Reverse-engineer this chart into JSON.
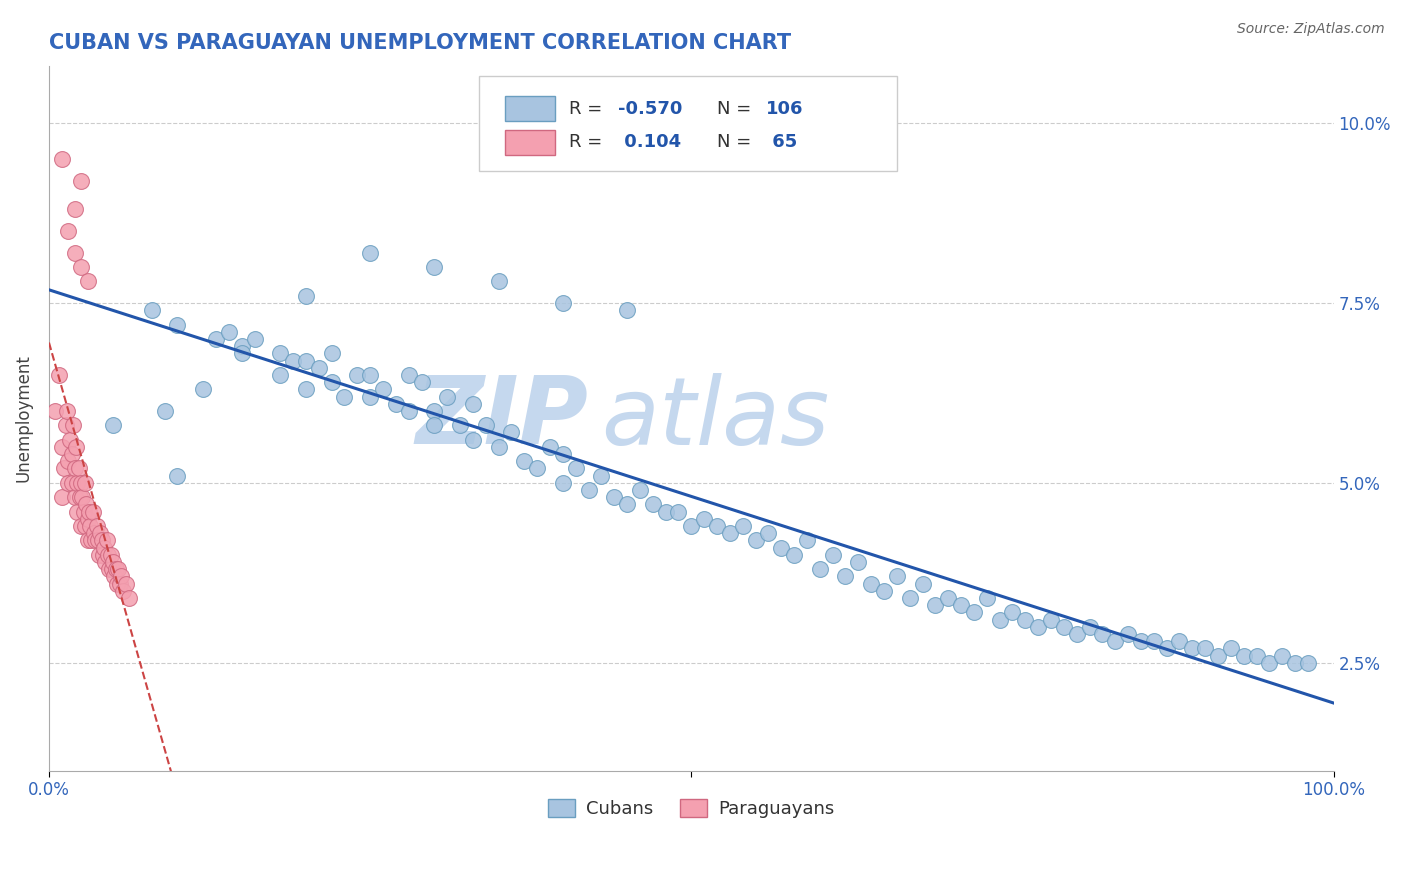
{
  "title": "CUBAN VS PARAGUAYAN UNEMPLOYMENT CORRELATION CHART",
  "source": "Source: ZipAtlas.com",
  "ylabel": "Unemployment",
  "yticks": [
    0.025,
    0.05,
    0.075,
    0.1
  ],
  "ytick_labels": [
    "2.5%",
    "5.0%",
    "7.5%",
    "10.0%"
  ],
  "xlim": [
    0.0,
    1.0
  ],
  "ylim": [
    0.01,
    0.108
  ],
  "cuban_R": -0.57,
  "cuban_N": 106,
  "paraguayan_R": 0.104,
  "paraguayan_N": 65,
  "cuban_color": "#a8c4e0",
  "cuban_edge_color": "#6a9ec0",
  "paraguayan_color": "#f4a0b0",
  "paraguayan_edge_color": "#d06880",
  "trend_cuban_color": "#2255aa",
  "trend_paraguayan_color": "#cc4444",
  "watermark_zip": "ZIP",
  "watermark_atlas": "atlas",
  "watermark_color": "#c5d8ee",
  "background_color": "#ffffff",
  "grid_color": "#cccccc",
  "title_color": "#3366bb",
  "axis_color": "#3366bb",
  "cuban_x": [
    0.05,
    0.08,
    0.09,
    0.1,
    0.1,
    0.12,
    0.13,
    0.14,
    0.15,
    0.15,
    0.16,
    0.18,
    0.18,
    0.19,
    0.2,
    0.2,
    0.21,
    0.22,
    0.22,
    0.23,
    0.24,
    0.25,
    0.25,
    0.26,
    0.27,
    0.28,
    0.28,
    0.29,
    0.3,
    0.3,
    0.31,
    0.32,
    0.33,
    0.33,
    0.34,
    0.35,
    0.36,
    0.37,
    0.38,
    0.39,
    0.4,
    0.4,
    0.41,
    0.42,
    0.43,
    0.44,
    0.45,
    0.46,
    0.47,
    0.48,
    0.49,
    0.5,
    0.51,
    0.52,
    0.53,
    0.54,
    0.55,
    0.56,
    0.57,
    0.58,
    0.59,
    0.6,
    0.61,
    0.62,
    0.63,
    0.64,
    0.65,
    0.66,
    0.67,
    0.68,
    0.69,
    0.7,
    0.71,
    0.72,
    0.73,
    0.74,
    0.75,
    0.76,
    0.77,
    0.78,
    0.79,
    0.8,
    0.81,
    0.82,
    0.83,
    0.84,
    0.85,
    0.86,
    0.87,
    0.88,
    0.89,
    0.9,
    0.91,
    0.92,
    0.93,
    0.94,
    0.95,
    0.96,
    0.97,
    0.98,
    0.3,
    0.25,
    0.35,
    0.2,
    0.4,
    0.45
  ],
  "cuban_y": [
    0.058,
    0.074,
    0.06,
    0.072,
    0.051,
    0.063,
    0.07,
    0.071,
    0.069,
    0.068,
    0.07,
    0.068,
    0.065,
    0.067,
    0.067,
    0.063,
    0.066,
    0.064,
    0.068,
    0.062,
    0.065,
    0.062,
    0.065,
    0.063,
    0.061,
    0.065,
    0.06,
    0.064,
    0.06,
    0.058,
    0.062,
    0.058,
    0.056,
    0.061,
    0.058,
    0.055,
    0.057,
    0.053,
    0.052,
    0.055,
    0.05,
    0.054,
    0.052,
    0.049,
    0.051,
    0.048,
    0.047,
    0.049,
    0.047,
    0.046,
    0.046,
    0.044,
    0.045,
    0.044,
    0.043,
    0.044,
    0.042,
    0.043,
    0.041,
    0.04,
    0.042,
    0.038,
    0.04,
    0.037,
    0.039,
    0.036,
    0.035,
    0.037,
    0.034,
    0.036,
    0.033,
    0.034,
    0.033,
    0.032,
    0.034,
    0.031,
    0.032,
    0.031,
    0.03,
    0.031,
    0.03,
    0.029,
    0.03,
    0.029,
    0.028,
    0.029,
    0.028,
    0.028,
    0.027,
    0.028,
    0.027,
    0.027,
    0.026,
    0.027,
    0.026,
    0.026,
    0.025,
    0.026,
    0.025,
    0.025,
    0.08,
    0.082,
    0.078,
    0.076,
    0.075,
    0.074
  ],
  "paraguayan_x": [
    0.005,
    0.008,
    0.01,
    0.01,
    0.012,
    0.013,
    0.014,
    0.015,
    0.015,
    0.016,
    0.018,
    0.018,
    0.019,
    0.02,
    0.02,
    0.021,
    0.022,
    0.022,
    0.023,
    0.024,
    0.025,
    0.025,
    0.026,
    0.027,
    0.028,
    0.028,
    0.029,
    0.03,
    0.03,
    0.031,
    0.032,
    0.033,
    0.034,
    0.035,
    0.036,
    0.037,
    0.038,
    0.039,
    0.04,
    0.041,
    0.042,
    0.043,
    0.044,
    0.045,
    0.046,
    0.047,
    0.048,
    0.049,
    0.05,
    0.051,
    0.052,
    0.053,
    0.054,
    0.055,
    0.056,
    0.058,
    0.06,
    0.062,
    0.01,
    0.015,
    0.02,
    0.025,
    0.03,
    0.02,
    0.025
  ],
  "paraguayan_y": [
    0.06,
    0.065,
    0.048,
    0.055,
    0.052,
    0.058,
    0.06,
    0.05,
    0.053,
    0.056,
    0.05,
    0.054,
    0.058,
    0.052,
    0.048,
    0.055,
    0.05,
    0.046,
    0.052,
    0.048,
    0.05,
    0.044,
    0.048,
    0.046,
    0.05,
    0.044,
    0.047,
    0.045,
    0.042,
    0.046,
    0.044,
    0.042,
    0.046,
    0.043,
    0.042,
    0.044,
    0.042,
    0.04,
    0.043,
    0.042,
    0.04,
    0.041,
    0.039,
    0.042,
    0.04,
    0.038,
    0.04,
    0.038,
    0.039,
    0.037,
    0.038,
    0.036,
    0.038,
    0.036,
    0.037,
    0.035,
    0.036,
    0.034,
    0.095,
    0.085,
    0.082,
    0.08,
    0.078,
    0.088,
    0.092
  ]
}
